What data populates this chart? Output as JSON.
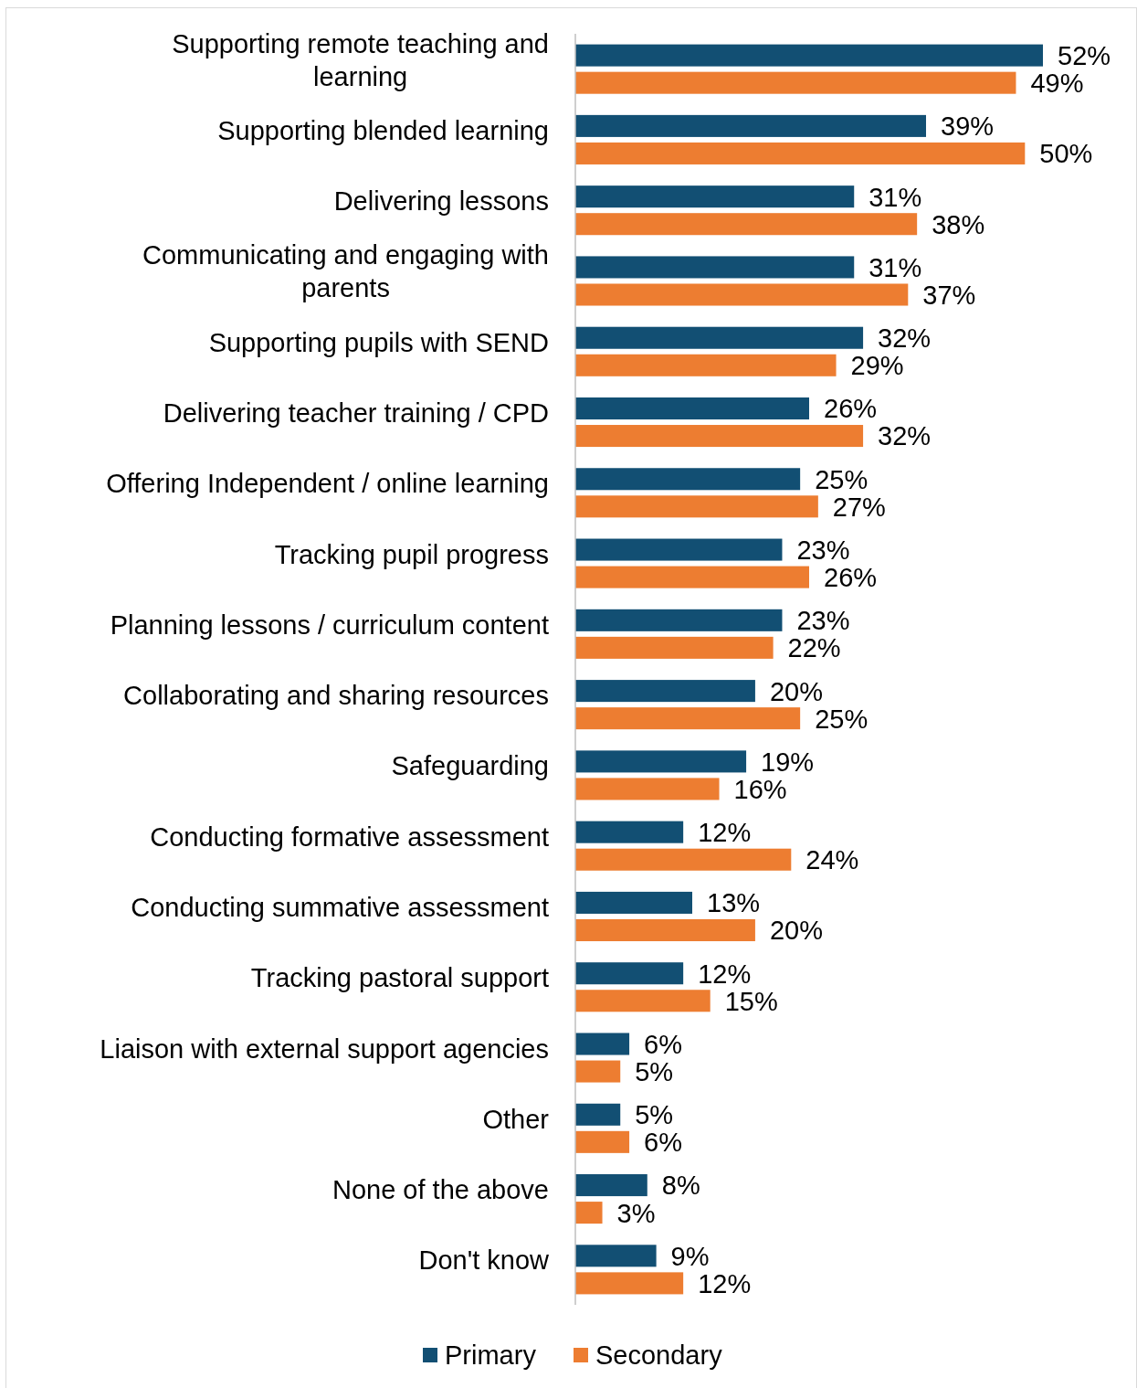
{
  "chart_data": {
    "type": "bar",
    "orientation": "horizontal",
    "categories": [
      "Supporting remote teaching and learning",
      "Supporting blended learning",
      "Delivering lessons",
      "Communicating and engaging with parents",
      "Supporting pupils with SEND",
      "Delivering teacher training / CPD",
      "Offering Independent / online learning",
      "Tracking pupil progress",
      "Planning lessons / curriculum content",
      "Collaborating and sharing resources",
      "Safeguarding",
      "Conducting formative assessment",
      "Conducting summative assessment",
      "Tracking pastoral support",
      "Liaison with external support agencies",
      "Other",
      "None of the above",
      "Don't know"
    ],
    "series": [
      {
        "name": "Primary",
        "color": "#124f73",
        "values": [
          52,
          39,
          31,
          31,
          32,
          26,
          25,
          23,
          23,
          20,
          19,
          12,
          13,
          12,
          6,
          5,
          8,
          9
        ],
        "value_labels": [
          "52%",
          "39%",
          "31%",
          "31%",
          "32%",
          "26%",
          "25%",
          "23%",
          "23%",
          "20%",
          "19%",
          "12%",
          "13%",
          "12%",
          "6%",
          "5%",
          "8%",
          "9%"
        ]
      },
      {
        "name": "Secondary",
        "color": "#ed7d31",
        "values": [
          49,
          50,
          38,
          37,
          29,
          32,
          27,
          26,
          22,
          25,
          16,
          24,
          20,
          15,
          5,
          6,
          3,
          12
        ],
        "value_labels": [
          "49%",
          "50%",
          "38%",
          "37%",
          "29%",
          "32%",
          "27%",
          "26%",
          "22%",
          "25%",
          "16%",
          "24%",
          "20%",
          "15%",
          "5%",
          "6%",
          "3%",
          "12%"
        ]
      }
    ],
    "legend": "bottom"
  }
}
